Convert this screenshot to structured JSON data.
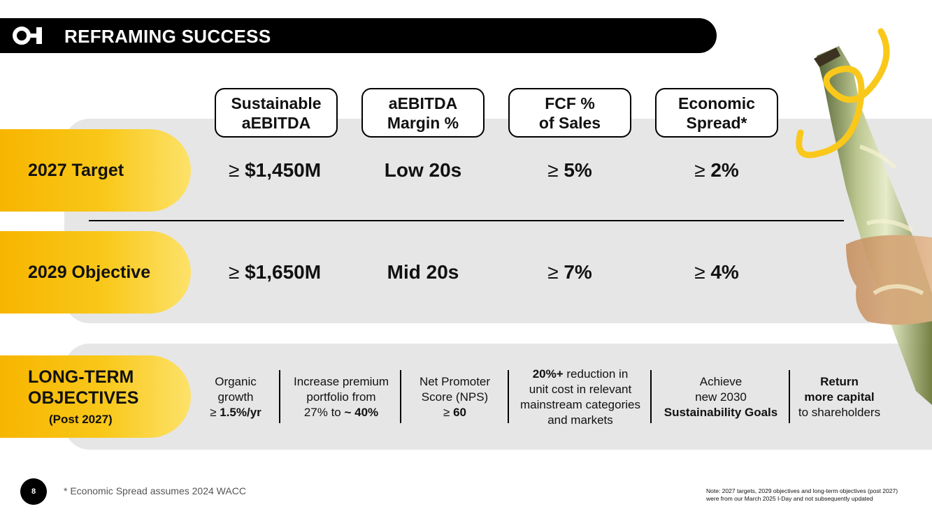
{
  "header": {
    "title": "REFRAMING SUCCESS",
    "logo_text": "O-I"
  },
  "columns": [
    {
      "line1": "Sustainable",
      "line2": "aEBITDA"
    },
    {
      "line1": "aEBITDA",
      "line2": "Margin %"
    },
    {
      "line1": "FCF %",
      "line2": "of Sales"
    },
    {
      "line1": "Economic",
      "line2": "Spread*"
    }
  ],
  "rows": [
    {
      "label": "2027 Target",
      "values": [
        {
          "prefix": "≥ ",
          "value": "$1,450M"
        },
        {
          "prefix": "",
          "value": "Low 20s"
        },
        {
          "prefix": "≥ ",
          "value": "5%"
        },
        {
          "prefix": "≥ ",
          "value": "2%"
        }
      ]
    },
    {
      "label": "2029 Objective",
      "values": [
        {
          "prefix": "≥ ",
          "value": "$1,650M"
        },
        {
          "prefix": "",
          "value": "Mid 20s"
        },
        {
          "prefix": "≥ ",
          "value": "7%"
        },
        {
          "prefix": "≥ ",
          "value": "4%"
        }
      ]
    }
  ],
  "long_term": {
    "line1": "LONG-TERM",
    "line2": "OBJECTIVES",
    "sub": "(Post 2027)",
    "objectives": [
      {
        "a": "Organic",
        "b": "growth",
        "c_pre": "≥ ",
        "c_bold": "1.5%/yr"
      },
      {
        "a": "Increase premium",
        "b": "portfolio from",
        "c_pre": "27% to ",
        "c_bold": "~ 40%"
      },
      {
        "a": "Net Promoter",
        "b": "Score (NPS)",
        "c_pre": "≥ ",
        "c_bold": "60"
      },
      {
        "a_bold": "20%+",
        "a": " reduction in",
        "b": "unit cost in relevant",
        "c": "mainstream categories",
        "d": "and markets"
      },
      {
        "a": "Achieve",
        "b": "new 2030",
        "c_bold": "Sustainability Goals"
      },
      {
        "a_bold": "Return",
        "b_bold": "more capital",
        "c": "to shareholders"
      }
    ]
  },
  "footer": {
    "page": "8",
    "footnote": "* Economic Spread assumes 2024 WACC",
    "note": "Note: 2027 targets, 2029 objectives and long-term objectives (post 2027) were from our March 2025 I-Day and not subsequently updated"
  },
  "colors": {
    "accent": "#f9c81a",
    "panel": "#e6e6e6",
    "header": "#000000"
  }
}
